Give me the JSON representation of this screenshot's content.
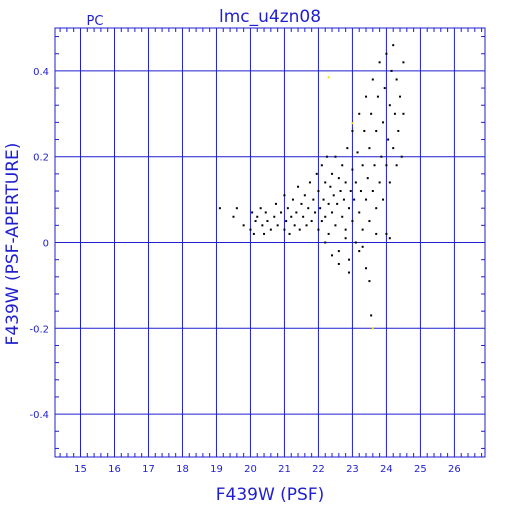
{
  "chart_data": {
    "type": "scatter",
    "title": "lmc_u4zn08",
    "subtitle": "PC",
    "xlabel": "F439W (PSF)",
    "ylabel": "F439W (PSF-APERTURE)",
    "xlim": [
      14.25,
      26.9
    ],
    "ylim": [
      -0.5,
      0.5
    ],
    "x_ticks": [
      "15",
      "16",
      "17",
      "18",
      "19",
      "20",
      "21",
      "22",
      "23",
      "24",
      "25",
      "26"
    ],
    "y_ticks": [
      "0.4",
      "0.2",
      "0",
      "-0.2",
      "-0.4"
    ],
    "grid": true,
    "colors": {
      "axes": "#1f1fd0",
      "grid": "#1f1fd0",
      "points": "#000000",
      "highlight_points": "#f0e000"
    },
    "highlight_points": [
      [
        22.3,
        0.385
      ],
      [
        23.0,
        0.278
      ],
      [
        23.6,
        -0.2
      ]
    ],
    "series": [
      {
        "points": [
          [
            19.1,
            0.08
          ],
          [
            19.5,
            0.06
          ],
          [
            19.6,
            0.08
          ],
          [
            19.8,
            0.04
          ],
          [
            20.0,
            0.03
          ],
          [
            20.05,
            0.07
          ],
          [
            20.1,
            0.02
          ],
          [
            20.15,
            0.05
          ],
          [
            20.2,
            0.06
          ],
          [
            20.3,
            0.08
          ],
          [
            20.35,
            0.04
          ],
          [
            20.4,
            0.02
          ],
          [
            20.45,
            0.07
          ],
          [
            20.5,
            0.05
          ],
          [
            20.6,
            0.03
          ],
          [
            20.7,
            0.06
          ],
          [
            20.75,
            0.09
          ],
          [
            20.8,
            0.04
          ],
          [
            20.9,
            0.07
          ],
          [
            21.0,
            0.03
          ],
          [
            21.0,
            0.11
          ],
          [
            21.05,
            0.05
          ],
          [
            21.1,
            0.08
          ],
          [
            21.15,
            0.02
          ],
          [
            21.2,
            0.06
          ],
          [
            21.25,
            0.1
          ],
          [
            21.3,
            0.04
          ],
          [
            21.35,
            0.07
          ],
          [
            21.4,
            0.13
          ],
          [
            21.45,
            0.03
          ],
          [
            21.5,
            0.09
          ],
          [
            21.55,
            0.06
          ],
          [
            21.6,
            0.11
          ],
          [
            21.65,
            0.04
          ],
          [
            21.7,
            0.08
          ],
          [
            21.75,
            0.14
          ],
          [
            21.8,
            0.05
          ],
          [
            21.85,
            0.1
          ],
          [
            21.9,
            0.07
          ],
          [
            21.95,
            0.16
          ],
          [
            22.0,
            0.03
          ],
          [
            22.0,
            0.12
          ],
          [
            22.05,
            0.08
          ],
          [
            22.1,
            0.05
          ],
          [
            22.1,
            0.18
          ],
          [
            22.15,
            0.1
          ],
          [
            22.2,
            0.14
          ],
          [
            22.2,
            0.06
          ],
          [
            22.25,
            0.2
          ],
          [
            22.3,
            0.09
          ],
          [
            22.3,
            0.02
          ],
          [
            22.35,
            0.13
          ],
          [
            22.4,
            0.07
          ],
          [
            22.4,
            0.16
          ],
          [
            22.45,
            0.11
          ],
          [
            22.5,
            0.04
          ],
          [
            22.5,
            0.2
          ],
          [
            22.55,
            0.09
          ],
          [
            22.6,
            0.15
          ],
          [
            22.6,
            -0.02
          ],
          [
            22.65,
            0.12
          ],
          [
            22.7,
            0.06
          ],
          [
            22.7,
            0.18
          ],
          [
            22.75,
            0.1
          ],
          [
            22.8,
            0.03
          ],
          [
            22.8,
            0.14
          ],
          [
            22.85,
            0.22
          ],
          [
            22.9,
            0.08
          ],
          [
            22.9,
            -0.04
          ],
          [
            22.95,
            0.12
          ],
          [
            23.0,
            0.05
          ],
          [
            23.0,
            0.17
          ],
          [
            23.0,
            0.26
          ],
          [
            23.05,
            0.1
          ],
          [
            23.1,
            0.0
          ],
          [
            23.1,
            0.14
          ],
          [
            23.15,
            0.21
          ],
          [
            23.2,
            0.07
          ],
          [
            23.2,
            0.3
          ],
          [
            23.25,
            0.12
          ],
          [
            23.3,
            0.18
          ],
          [
            23.3,
            0.03
          ],
          [
            23.35,
            0.26
          ],
          [
            23.4,
            0.1
          ],
          [
            23.4,
            0.34
          ],
          [
            23.45,
            0.15
          ],
          [
            23.5,
            0.05
          ],
          [
            23.5,
            0.22
          ],
          [
            23.55,
            0.3
          ],
          [
            23.6,
            0.12
          ],
          [
            23.6,
            0.38
          ],
          [
            23.65,
            0.18
          ],
          [
            23.7,
            0.08
          ],
          [
            23.7,
            0.26
          ],
          [
            23.75,
            0.34
          ],
          [
            23.8,
            0.14
          ],
          [
            23.8,
            0.42
          ],
          [
            23.85,
            0.2
          ],
          [
            23.9,
            0.28
          ],
          [
            23.9,
            0.1
          ],
          [
            23.95,
            0.36
          ],
          [
            24.0,
            0.18
          ],
          [
            24.0,
            0.44
          ],
          [
            24.05,
            0.24
          ],
          [
            24.1,
            0.32
          ],
          [
            24.1,
            0.14
          ],
          [
            24.15,
            0.4
          ],
          [
            24.2,
            0.22
          ],
          [
            24.2,
            0.46
          ],
          [
            24.25,
            0.3
          ],
          [
            24.3,
            0.18
          ],
          [
            24.3,
            0.38
          ],
          [
            24.35,
            0.26
          ],
          [
            24.4,
            0.34
          ],
          [
            24.45,
            0.2
          ],
          [
            24.5,
            0.42
          ],
          [
            24.5,
            0.3
          ],
          [
            22.4,
            -0.03
          ],
          [
            22.6,
            -0.05
          ],
          [
            22.9,
            -0.07
          ],
          [
            23.2,
            -0.02
          ],
          [
            23.4,
            -0.06
          ],
          [
            23.5,
            -0.09
          ],
          [
            23.55,
            -0.17
          ],
          [
            24.0,
            0.02
          ],
          [
            24.1,
            0.01
          ],
          [
            23.7,
            0.02
          ],
          [
            23.3,
            -0.01
          ],
          [
            22.2,
            0.0
          ],
          [
            22.8,
            0.01
          ]
        ]
      }
    ]
  }
}
